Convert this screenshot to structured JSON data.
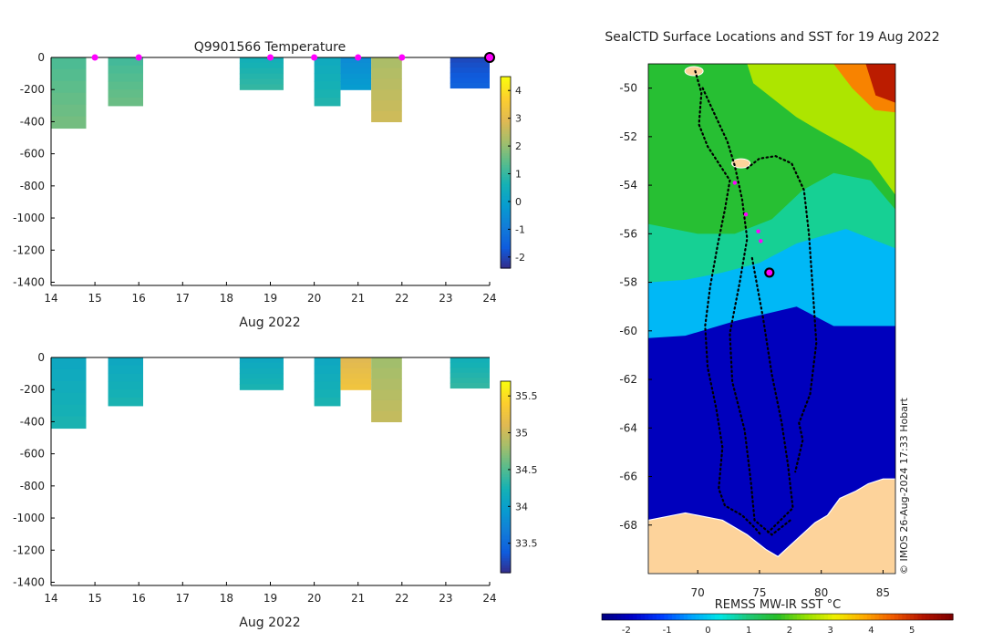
{
  "chart_data": [
    {
      "type": "heatmap",
      "title": "Q9901566  Temperature",
      "xlabel": "Aug 2022",
      "ylabel": "",
      "xlim": [
        14,
        24
      ],
      "ylim": [
        -1420,
        0
      ],
      "x_ticks": [
        14,
        15,
        16,
        17,
        18,
        19,
        20,
        21,
        22,
        23,
        24
      ],
      "y_ticks": [
        0,
        -200,
        -400,
        -600,
        -800,
        -1000,
        -1200,
        -1400
      ],
      "colorbar": {
        "min": -2.4,
        "max": 4.5,
        "ticks": [
          4,
          3,
          2,
          1,
          0,
          -1,
          -2
        ]
      },
      "surface_markers_day": [
        15,
        16,
        19,
        20,
        21,
        22
      ],
      "latest_marker_day": 24,
      "profiles": [
        {
          "start": 14.0,
          "end": 14.8,
          "depth": 440,
          "value": 1.5
        },
        {
          "start": 15.3,
          "end": 16.1,
          "depth": 300,
          "value": 1.4
        },
        {
          "start": 18.3,
          "end": 19.3,
          "depth": 200,
          "value": 0.8
        },
        {
          "start": 20.0,
          "end": 20.6,
          "depth": 300,
          "value": 0.6
        },
        {
          "start": 20.6,
          "end": 21.3,
          "depth": 200,
          "value": -0.3
        },
        {
          "start": 21.3,
          "end": 22.0,
          "depth": 400,
          "value": 2.5
        },
        {
          "start": 23.1,
          "end": 24.0,
          "depth": 190,
          "value": -1.7
        }
      ]
    },
    {
      "type": "heatmap",
      "title": "",
      "xlabel": "Aug 2022",
      "ylabel": "",
      "xlim": [
        14,
        24
      ],
      "ylim": [
        -1420,
        0
      ],
      "x_ticks": [
        14,
        15,
        16,
        17,
        18,
        19,
        20,
        21,
        22,
        23,
        24
      ],
      "y_ticks": [
        0,
        -200,
        -400,
        -600,
        -800,
        -1000,
        -1200,
        -1400
      ],
      "colorbar": {
        "min": 33.1,
        "max": 35.7,
        "ticks": [
          35.5,
          35,
          34.5,
          34,
          33.5
        ]
      },
      "profiles": [
        {
          "start": 14.0,
          "end": 14.8,
          "depth": 440,
          "value": 34.2
        },
        {
          "start": 15.3,
          "end": 16.1,
          "depth": 300,
          "value": 34.2
        },
        {
          "start": 18.3,
          "end": 19.3,
          "depth": 200,
          "value": 34.2
        },
        {
          "start": 20.0,
          "end": 20.6,
          "depth": 300,
          "value": 34.2
        },
        {
          "start": 20.6,
          "end": 21.3,
          "depth": 200,
          "value": 35.2
        },
        {
          "start": 21.3,
          "end": 22.0,
          "depth": 400,
          "value": 34.9
        },
        {
          "start": 23.1,
          "end": 24.0,
          "depth": 190,
          "value": 34.3
        }
      ]
    },
    {
      "type": "map",
      "title": "SealCTD Surface Locations and SST for 19 Aug 2022",
      "xlim": [
        66,
        86
      ],
      "ylim": [
        -70,
        -49
      ],
      "x_ticks": [
        70,
        75,
        80,
        85
      ],
      "y_ticks": [
        -50,
        -52,
        -54,
        -56,
        -58,
        -60,
        -62,
        -64,
        -66,
        -68
      ],
      "colorbar_label": "REMSS MW-IR SST °C",
      "colorbar": {
        "min": -2.6,
        "max": 6.0,
        "ticks": [
          -2,
          -1,
          0,
          1,
          2,
          3,
          4,
          5
        ]
      },
      "credit": "© IMOS 26-Aug-2024 17:33 Hobart",
      "sst_zones": [
        {
          "name": "cold",
          "value": -2.0
        },
        {
          "name": "front",
          "value": -0.2
        },
        {
          "name": "cool",
          "value": 0.8
        },
        {
          "name": "temperate",
          "value": 1.6
        },
        {
          "name": "warm",
          "value": 2.6
        }
      ],
      "magenta_positions": [
        {
          "lon": 73.0,
          "lat": -53.9
        },
        {
          "lon": 73.9,
          "lat": -55.2
        },
        {
          "lon": 74.9,
          "lat": -55.9
        },
        {
          "lon": 75.1,
          "lat": -56.3
        }
      ],
      "latest_position": {
        "lon": 75.8,
        "lat": -57.6
      },
      "tracks": [
        [
          [
            69.8,
            -49.3
          ],
          [
            70.3,
            -50.2
          ],
          [
            70.1,
            -51.5
          ],
          [
            70.8,
            -52.4
          ],
          [
            71.7,
            -53.1
          ],
          [
            72.6,
            -53.8
          ],
          [
            72.2,
            -55.0
          ],
          [
            71.6,
            -56.5
          ],
          [
            71.0,
            -58.2
          ],
          [
            70.6,
            -59.8
          ],
          [
            70.8,
            -61.5
          ],
          [
            71.5,
            -63.2
          ],
          [
            72.0,
            -64.8
          ],
          [
            71.7,
            -66.5
          ],
          [
            72.2,
            -67.2
          ],
          [
            73.6,
            -67.6
          ],
          [
            74.6,
            -68.1
          ],
          [
            75.1,
            -68.4
          ]
        ],
        [
          [
            70.4,
            -50.0
          ],
          [
            71.3,
            -51.0
          ],
          [
            72.4,
            -52.2
          ],
          [
            73.0,
            -53.2
          ],
          [
            73.6,
            -54.6
          ],
          [
            74.0,
            -56.2
          ],
          [
            73.4,
            -58.0
          ],
          [
            72.6,
            -60.1
          ],
          [
            72.8,
            -62.1
          ],
          [
            73.8,
            -64.1
          ],
          [
            74.3,
            -66.2
          ],
          [
            74.6,
            -67.8
          ],
          [
            76.0,
            -68.4
          ],
          [
            77.5,
            -67.8
          ]
        ],
        [
          [
            74.0,
            -53.3
          ],
          [
            75.0,
            -52.9
          ],
          [
            76.3,
            -52.8
          ],
          [
            77.6,
            -53.1
          ],
          [
            78.6,
            -54.2
          ],
          [
            79.0,
            -56.0
          ],
          [
            79.3,
            -58.2
          ],
          [
            79.6,
            -60.5
          ],
          [
            79.1,
            -62.6
          ],
          [
            78.2,
            -63.8
          ],
          [
            78.5,
            -64.5
          ],
          [
            77.9,
            -65.8
          ]
        ],
        [
          [
            74.4,
            -57.0
          ],
          [
            75.3,
            -59.5
          ],
          [
            76.0,
            -61.8
          ],
          [
            76.8,
            -63.8
          ],
          [
            77.3,
            -65.5
          ],
          [
            77.7,
            -67.3
          ],
          [
            76.5,
            -67.9
          ],
          [
            75.7,
            -68.3
          ]
        ]
      ],
      "land": [
        [
          [
            66,
            -67.8
          ],
          [
            69,
            -67.5
          ],
          [
            72,
            -67.8
          ],
          [
            74,
            -68.4
          ],
          [
            75.5,
            -69.0
          ],
          [
            76.5,
            -69.3
          ],
          [
            78,
            -68.6
          ],
          [
            79.5,
            -67.9
          ],
          [
            80.5,
            -67.6
          ],
          [
            81.5,
            -66.9
          ],
          [
            82.8,
            -66.6
          ],
          [
            83.8,
            -66.3
          ],
          [
            85,
            -66.1
          ],
          [
            86,
            -66.1
          ],
          [
            86,
            -70
          ],
          [
            66,
            -70
          ]
        ]
      ],
      "islands": [
        {
          "lon": 69.7,
          "lat": -49.3
        },
        {
          "lon": 73.5,
          "lat": -53.1
        }
      ]
    }
  ]
}
